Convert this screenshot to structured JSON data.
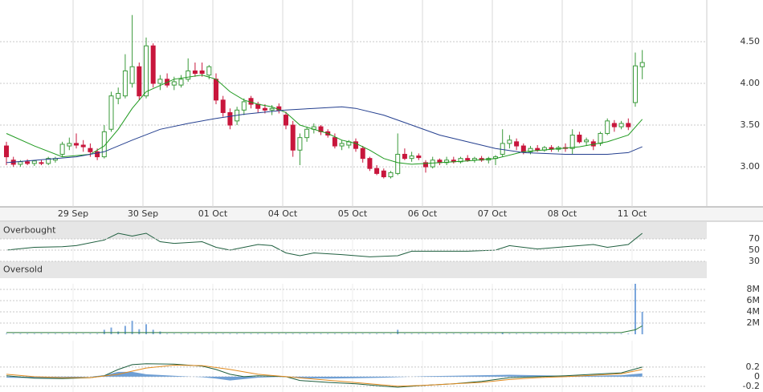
{
  "chart_data": [
    {
      "type": "candlestick",
      "xlim": [
        -0.92,
        100.23
      ],
      "xticks": [
        {
          "value": 9.54,
          "label": "29 Sep"
        },
        {
          "value": 19.54,
          "label": "30 Sep"
        },
        {
          "value": 29.54,
          "label": "01 Oct"
        },
        {
          "value": 39.54,
          "label": "04 Oct"
        },
        {
          "value": 49.54,
          "label": "05 Oct"
        },
        {
          "value": 59.54,
          "label": "06 Oct"
        },
        {
          "value": 69.54,
          "label": "07 Oct"
        },
        {
          "value": 79.54,
          "label": "08 Oct"
        },
        {
          "value": 89.54,
          "label": "11 Oct"
        }
      ],
      "ylim": [
        2.52,
        5.0
      ],
      "yticks": [
        {
          "value": 3.0,
          "label": "3.00"
        },
        {
          "value": 3.5,
          "label": "3.50"
        },
        {
          "value": 4.0,
          "label": "4.00"
        },
        {
          "value": 4.5,
          "label": "4.50"
        }
      ],
      "grid": true,
      "up_color": "#3a9a3a",
      "down_color": "#c8163c",
      "open": [
        3.25,
        3.08,
        3.03,
        3.06,
        3.04,
        3.05,
        3.04,
        3.08,
        3.15,
        3.25,
        3.28,
        3.26,
        3.22,
        3.18,
        3.12,
        3.45,
        3.82,
        3.85,
        4.0,
        4.2,
        3.85,
        4.45,
        4.0,
        4.05,
        3.98,
        3.98,
        4.05,
        4.15,
        4.15,
        4.1,
        4.05,
        3.8,
        3.65,
        3.55,
        3.68,
        3.82,
        3.75,
        3.7,
        3.68,
        3.72,
        3.62,
        3.5,
        3.2,
        3.35,
        3.45,
        3.48,
        3.42,
        3.35,
        3.25,
        3.26,
        3.3,
        3.22,
        3.1,
        2.98,
        2.95,
        2.88,
        2.92,
        3.15,
        3.1,
        3.13,
        3.05,
        3.0,
        3.08,
        3.05,
        3.08,
        3.06,
        3.1,
        3.08,
        3.1,
        3.08,
        3.1,
        3.15,
        3.28,
        3.3,
        3.25,
        3.18,
        3.22,
        3.2,
        3.23,
        3.21,
        3.23,
        3.22,
        3.38,
        3.3,
        3.3,
        3.28,
        3.4,
        3.52,
        3.48,
        3.52,
        3.77,
        4.2
      ],
      "high": [
        3.3,
        3.12,
        3.08,
        3.09,
        3.08,
        3.08,
        3.12,
        3.12,
        3.3,
        3.35,
        3.4,
        3.32,
        3.28,
        3.22,
        3.5,
        3.9,
        3.95,
        4.35,
        4.82,
        4.25,
        4.55,
        4.48,
        4.1,
        4.12,
        4.08,
        4.1,
        4.3,
        4.25,
        4.25,
        4.22,
        4.12,
        3.85,
        3.7,
        3.72,
        3.82,
        3.85,
        3.78,
        3.75,
        3.74,
        3.76,
        3.66,
        3.55,
        3.4,
        3.48,
        3.52,
        3.5,
        3.45,
        3.4,
        3.32,
        3.32,
        3.34,
        3.25,
        3.12,
        3.02,
        2.98,
        2.95,
        3.4,
        3.22,
        3.18,
        3.16,
        3.08,
        3.12,
        3.1,
        3.12,
        3.12,
        3.12,
        3.14,
        3.12,
        3.13,
        3.12,
        3.14,
        3.45,
        3.38,
        3.34,
        3.28,
        3.25,
        3.26,
        3.25,
        3.26,
        3.25,
        3.28,
        3.45,
        3.42,
        3.35,
        3.33,
        3.42,
        3.58,
        3.56,
        3.55,
        3.58,
        4.37,
        4.4
      ],
      "low": [
        3.02,
        3.0,
        3.0,
        3.02,
        3.01,
        3.02,
        3.02,
        3.05,
        3.12,
        3.2,
        3.22,
        3.18,
        3.12,
        3.08,
        3.1,
        3.42,
        3.75,
        3.82,
        3.95,
        3.8,
        3.82,
        3.95,
        3.92,
        3.95,
        3.92,
        3.95,
        4.02,
        4.08,
        4.08,
        4.05,
        3.75,
        3.6,
        3.45,
        3.5,
        3.62,
        3.7,
        3.65,
        3.64,
        3.62,
        3.64,
        3.45,
        3.12,
        3.02,
        3.3,
        3.4,
        3.38,
        3.35,
        3.22,
        3.2,
        3.22,
        3.18,
        3.05,
        2.95,
        2.9,
        2.86,
        2.86,
        2.9,
        3.08,
        3.06,
        3.08,
        2.93,
        2.98,
        3.02,
        3.02,
        3.04,
        3.04,
        3.06,
        3.05,
        3.06,
        3.04,
        3.02,
        3.12,
        3.22,
        3.2,
        3.15,
        3.15,
        3.18,
        3.18,
        3.18,
        3.18,
        3.18,
        3.15,
        3.28,
        3.25,
        3.2,
        3.25,
        3.38,
        3.42,
        3.45,
        3.44,
        3.72,
        4.05
      ],
      "close": [
        3.12,
        3.03,
        3.06,
        3.04,
        3.07,
        3.04,
        3.1,
        3.1,
        3.27,
        3.28,
        3.26,
        3.24,
        3.18,
        3.12,
        3.42,
        3.85,
        3.88,
        4.15,
        4.2,
        3.85,
        4.45,
        4.0,
        4.05,
        3.98,
        4.02,
        4.05,
        4.15,
        4.12,
        4.12,
        4.2,
        3.8,
        3.65,
        3.5,
        3.68,
        3.78,
        3.75,
        3.7,
        3.68,
        3.7,
        3.68,
        3.5,
        3.2,
        3.35,
        3.45,
        3.48,
        3.42,
        3.38,
        3.25,
        3.28,
        3.3,
        3.22,
        3.1,
        2.98,
        2.92,
        2.88,
        2.93,
        3.15,
        3.1,
        3.13,
        3.11,
        3.0,
        3.08,
        3.05,
        3.08,
        3.06,
        3.1,
        3.08,
        3.1,
        3.08,
        3.1,
        3.12,
        3.28,
        3.32,
        3.25,
        3.18,
        3.22,
        3.2,
        3.23,
        3.21,
        3.23,
        3.22,
        3.38,
        3.3,
        3.32,
        3.25,
        3.4,
        3.55,
        3.48,
        3.52,
        3.48,
        4.21,
        4.25
      ],
      "series": [
        {
          "color": "#1f9a1f",
          "x": [
            0,
            4,
            8,
            12,
            14,
            16,
            18,
            20,
            24,
            28,
            30,
            32,
            34,
            36,
            38,
            40,
            42,
            44,
            46,
            48,
            50,
            52,
            54,
            56,
            58,
            62,
            66,
            70,
            74,
            78,
            82,
            86,
            89,
            91
          ],
          "values": [
            3.4,
            3.25,
            3.12,
            3.15,
            3.25,
            3.45,
            3.7,
            3.9,
            4.05,
            4.1,
            4.05,
            3.9,
            3.8,
            3.75,
            3.72,
            3.65,
            3.5,
            3.45,
            3.4,
            3.32,
            3.28,
            3.2,
            3.1,
            3.05,
            3.03,
            3.05,
            3.07,
            3.1,
            3.18,
            3.21,
            3.24,
            3.3,
            3.38,
            3.57
          ]
        },
        {
          "color": "#243f8f",
          "x": [
            0,
            10,
            14,
            18,
            22,
            26,
            30,
            34,
            40,
            44,
            48,
            50,
            54,
            58,
            62,
            66,
            70,
            74,
            80,
            86,
            89,
            91
          ],
          "values": [
            3.05,
            3.12,
            3.18,
            3.32,
            3.45,
            3.52,
            3.58,
            3.63,
            3.68,
            3.7,
            3.72,
            3.7,
            3.62,
            3.5,
            3.38,
            3.3,
            3.22,
            3.17,
            3.15,
            3.15,
            3.17,
            3.24
          ]
        }
      ]
    },
    {
      "type": "line",
      "ylim": [
        0,
        100
      ],
      "yticks": [
        30,
        50,
        70
      ],
      "bands": [
        {
          "label": "Overbought",
          "range": [
            70,
            100
          ]
        },
        {
          "label": "Oversold",
          "range": [
            0,
            30
          ]
        }
      ],
      "series": [
        {
          "color": "#1f5f3f",
          "x": [
            0,
            4,
            8,
            10,
            14,
            16,
            18,
            20,
            22,
            24,
            28,
            30,
            32,
            34,
            36,
            38,
            40,
            42,
            44,
            48,
            52,
            56,
            58,
            62,
            66,
            70,
            72,
            76,
            80,
            84,
            86,
            89,
            91
          ],
          "values": [
            50,
            55,
            56,
            58,
            68,
            80,
            75,
            80,
            65,
            62,
            65,
            55,
            50,
            55,
            60,
            58,
            45,
            40,
            45,
            42,
            38,
            40,
            48,
            48,
            48,
            50,
            58,
            52,
            56,
            60,
            55,
            60,
            80
          ]
        }
      ]
    },
    {
      "type": "bar",
      "ylim": [
        0,
        9
      ],
      "color": "#7aa6dc",
      "yticks": [
        {
          "value": 2,
          "label": "2M"
        },
        {
          "value": 4,
          "label": "4M"
        },
        {
          "value": 6,
          "label": "6M"
        },
        {
          "value": 8,
          "label": "8M"
        }
      ],
      "values": [
        0.1,
        0.1,
        0.1,
        0.1,
        0.1,
        0.1,
        0.1,
        0.1,
        0.1,
        0.1,
        0.1,
        0.1,
        0.1,
        0.1,
        0.8,
        1.2,
        0.5,
        1.5,
        2.4,
        0.9,
        1.8,
        0.8,
        0.5,
        0.1,
        0.1,
        0.1,
        0.1,
        0.1,
        0.1,
        0.1,
        0.1,
        0.1,
        0.1,
        0.1,
        0.1,
        0.1,
        0.1,
        0.1,
        0.1,
        0.1,
        0.1,
        0.1,
        0.1,
        0.1,
        0.1,
        0.1,
        0.1,
        0.1,
        0.1,
        0.1,
        0.1,
        0.1,
        0.1,
        0.1,
        0.1,
        0.1,
        0.8,
        0.1,
        0.1,
        0.1,
        0.1,
        0.1,
        0.1,
        0.1,
        0.1,
        0.1,
        0.1,
        0.1,
        0.1,
        0.1,
        0.1,
        0.3,
        0.1,
        0.1,
        0.1,
        0.1,
        0.1,
        0.1,
        0.1,
        0.1,
        0.1,
        0.1,
        0.1,
        0.1,
        0.1,
        0.1,
        0.1,
        0.1,
        0.1,
        0.1,
        9,
        4.0
      ],
      "line": {
        "color": "#2a7a3a",
        "x": [
          0,
          88,
          90,
          91
        ],
        "values": [
          0.3,
          0.3,
          0.8,
          1.5
        ]
      }
    },
    {
      "type": "macd",
      "ylim": [
        -0.32,
        0.75
      ],
      "yticks": [
        -0.2,
        0,
        0.2
      ],
      "histogram": {
        "color": "#6f9fd4",
        "x": [
          0,
          4,
          8,
          12,
          14,
          16,
          18,
          20,
          24,
          28,
          30,
          32,
          34,
          36,
          40,
          42,
          46,
          50,
          54,
          56,
          60,
          64,
          68,
          72,
          76,
          80,
          84,
          88,
          91
        ],
        "values": [
          -0.02,
          -0.03,
          -0.03,
          0,
          0.03,
          0.1,
          0.1,
          0.05,
          0.02,
          -0.01,
          -0.04,
          -0.08,
          -0.05,
          -0.02,
          0,
          -0.03,
          -0.04,
          -0.03,
          -0.02,
          -0.01,
          0.01,
          0.02,
          0.03,
          0.04,
          0.03,
          0.02,
          0.02,
          0.03,
          0.07
        ]
      },
      "series": [
        {
          "color": "#1f5f3f",
          "x": [
            0,
            4,
            8,
            12,
            14,
            16,
            18,
            20,
            24,
            28,
            30,
            32,
            34,
            36,
            40,
            42,
            46,
            50,
            54,
            56,
            60,
            64,
            68,
            72,
            76,
            80,
            84,
            88,
            91
          ],
          "values": [
            0.02,
            -0.03,
            -0.04,
            -0.02,
            0.02,
            0.15,
            0.25,
            0.27,
            0.26,
            0.22,
            0.15,
            0.05,
            0.0,
            0.02,
            0.0,
            -0.08,
            -0.12,
            -0.15,
            -0.2,
            -0.22,
            -0.18,
            -0.15,
            -0.1,
            -0.02,
            0.0,
            0.02,
            0.05,
            0.08,
            0.2
          ]
        },
        {
          "color": "#e08a1e",
          "x": [
            0,
            4,
            8,
            12,
            16,
            20,
            24,
            28,
            32,
            36,
            40,
            44,
            48,
            52,
            56,
            60,
            64,
            68,
            72,
            76,
            80,
            84,
            88,
            91
          ],
          "values": [
            0.05,
            0.0,
            -0.02,
            -0.02,
            0.05,
            0.18,
            0.24,
            0.23,
            0.15,
            0.05,
            0.0,
            -0.05,
            -0.1,
            -0.15,
            -0.2,
            -0.18,
            -0.15,
            -0.12,
            -0.06,
            -0.02,
            0.0,
            0.03,
            0.06,
            0.15
          ]
        }
      ]
    }
  ]
}
